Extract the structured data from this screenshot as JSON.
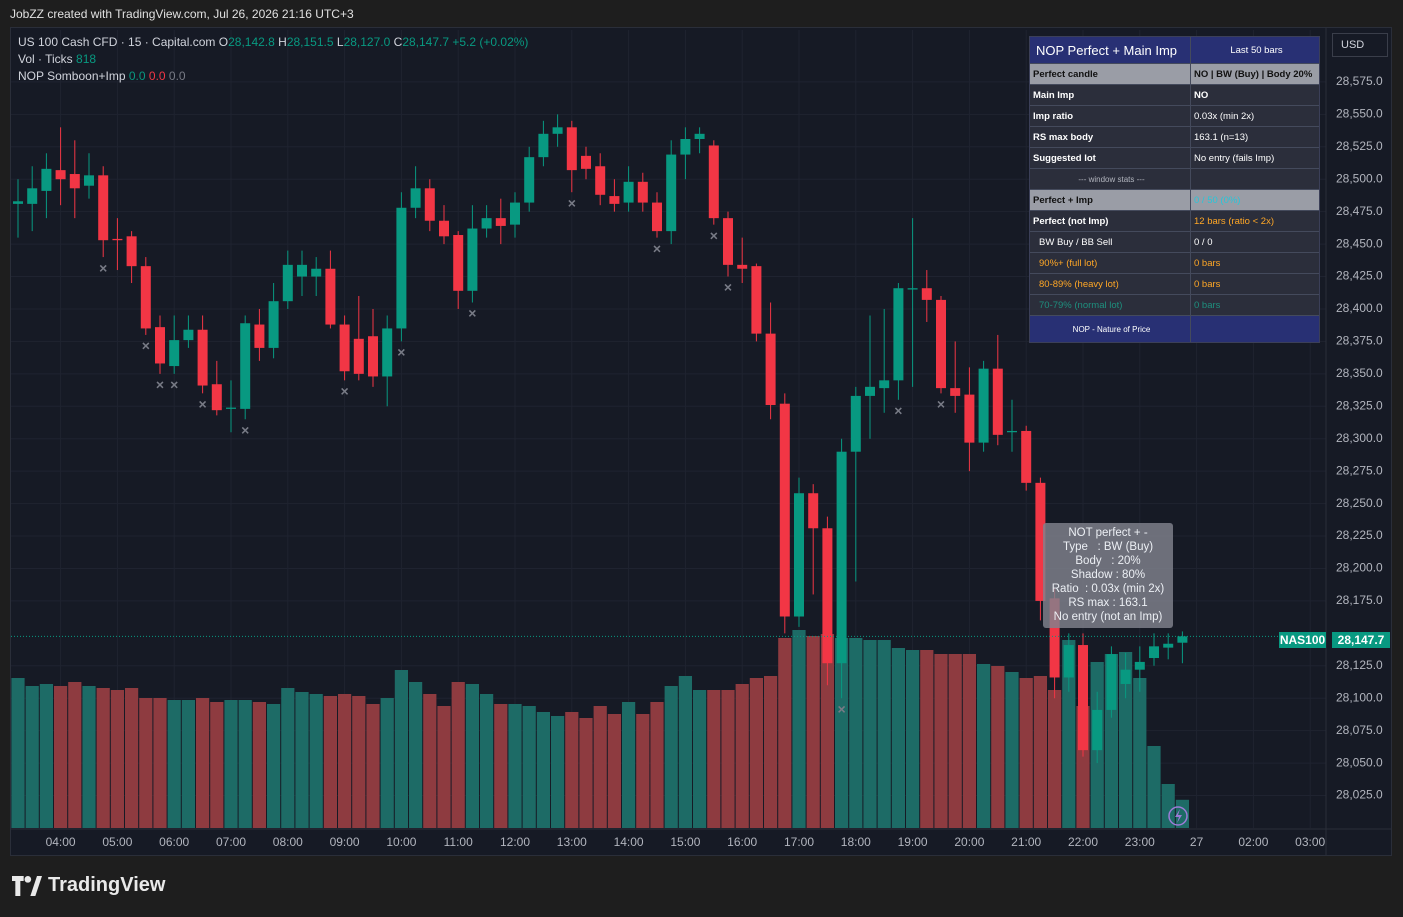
{
  "header": {
    "credit": "JobZZ created with TradingView.com, Jul 26, 2026 21:16 UTC+3"
  },
  "legend": {
    "symbol": "US 100 Cash CFD · 15 · Capital.com",
    "o_label": "O",
    "o": "28,142.8",
    "h_label": "H",
    "h": "28,151.5",
    "l_label": "L",
    "l": "28,127.0",
    "c_label": "C",
    "c": "28,147.7",
    "change": "+5.2 (+0.02%)",
    "vol_name": "Vol · Ticks",
    "vol_value": "818",
    "ind_name": "NOP Somboon+Imp",
    "ind_values": [
      "0.0",
      "0.0",
      "0.0"
    ]
  },
  "currency": "USD",
  "price_tag": {
    "symbol": "NAS100",
    "price": "28,147.7"
  },
  "chart_data": {
    "type": "candlestick",
    "up_color": "#089981",
    "down_color": "#f23645",
    "volume_up_color": "#1d6b66",
    "volume_down_color": "#8e3b40",
    "open": [
      28481,
      28481,
      28491,
      28507,
      28504,
      28495,
      28503,
      28454,
      28456,
      28433,
      28386,
      28356,
      28376,
      28384,
      28342,
      28323,
      28323,
      28388,
      28370,
      28406,
      28425,
      28425,
      28431,
      28388,
      28377,
      28379,
      28348,
      28385,
      28478,
      28493,
      28468,
      28457,
      28414,
      28462,
      28470,
      28465,
      28482,
      28517,
      28535,
      28540,
      28518,
      28510,
      28487,
      28482,
      28498,
      28482,
      28460,
      28519,
      28531,
      28526,
      28470,
      28434,
      28433,
      28381,
      28327,
      28163,
      28258,
      28231,
      28127,
      28290,
      28333,
      28339,
      28345,
      28415,
      28416,
      28407,
      28339,
      28334,
      28297,
      28354,
      28305,
      28306,
      28266,
      28177,
      28116,
      28141,
      28060,
      28091,
      28111,
      28122,
      28131,
      28139,
      28142.8
    ],
    "high": [
      28500,
      28510,
      28520,
      28540,
      28530,
      28520,
      28510,
      28470,
      28460,
      28440,
      28395,
      28395,
      28395,
      28395,
      28360,
      28345,
      28395,
      28400,
      28420,
      28445,
      28445,
      28440,
      28445,
      28395,
      28410,
      28400,
      28395,
      28490,
      28510,
      28500,
      28480,
      28460,
      28480,
      28480,
      28485,
      28490,
      28525,
      28545,
      28550,
      28545,
      28525,
      28520,
      28500,
      28510,
      28505,
      28490,
      28530,
      28540,
      28540,
      28530,
      28475,
      28455,
      28435,
      28405,
      28335,
      28270,
      28265,
      28240,
      28300,
      28340,
      28395,
      28400,
      28420,
      28470,
      28430,
      28410,
      28375,
      28355,
      28360,
      28380,
      28330,
      28310,
      28270,
      28185,
      28150,
      28150,
      28105,
      28140,
      28135,
      28140,
      28150,
      28150,
      28151.5
    ],
    "low": [
      28455,
      28460,
      28470,
      28480,
      28470,
      28485,
      28440,
      28430,
      28420,
      28380,
      28350,
      28350,
      28370,
      28335,
      28318,
      28305,
      28315,
      28360,
      28362,
      28400,
      28410,
      28410,
      28385,
      28345,
      28345,
      28340,
      28325,
      28375,
      28470,
      28460,
      28450,
      28400,
      28405,
      28455,
      28450,
      28455,
      28475,
      28510,
      28525,
      28490,
      28500,
      28480,
      28475,
      28475,
      28475,
      28455,
      28450,
      28500,
      28520,
      28465,
      28425,
      28420,
      28375,
      28315,
      28150,
      28155,
      28180,
      28110,
      28100,
      28190,
      28300,
      28320,
      28330,
      28340,
      28390,
      28335,
      28320,
      28275,
      28290,
      28295,
      28290,
      28260,
      28160,
      28100,
      28105,
      28055,
      28050,
      28085,
      28100,
      28105,
      28125,
      28130,
      28127
    ],
    "close": [
      28483,
      28493,
      28508,
      28500,
      28493,
      28503,
      28453,
      28453,
      28433,
      28385,
      28358,
      28376,
      28384,
      28341,
      28322,
      28324,
      28389,
      28370,
      28406,
      28434,
      28434,
      28431,
      28388,
      28352,
      28350,
      28348,
      28385,
      28478,
      28493,
      28468,
      28456,
      28414,
      28462,
      28470,
      28464,
      28482,
      28517,
      28535,
      28540,
      28507,
      28508,
      28488,
      28481,
      28498,
      28482,
      28460,
      28519,
      28531,
      28535,
      28470,
      28434,
      28431,
      28381,
      28326,
      28163,
      28258,
      28231,
      28127,
      28290,
      28333,
      28340,
      28345,
      28416,
      28416,
      28407,
      28339,
      28333,
      28297,
      28354,
      28303,
      28306,
      28266,
      28175,
      28116,
      28141,
      28060,
      28091,
      28134,
      28122,
      28128,
      28140,
      28142,
      28147.7
    ],
    "volume": [
      4350,
      4118,
      4176,
      4118,
      4234,
      4118,
      4060,
      4002,
      4060,
      3770,
      3770,
      3712,
      3712,
      3770,
      3654,
      3712,
      3712,
      3654,
      3596,
      4060,
      3944,
      3886,
      3828,
      3886,
      3828,
      3596,
      3770,
      4582,
      4234,
      3886,
      3538,
      4234,
      4176,
      3886,
      3596,
      3596,
      3538,
      3364,
      3248,
      3364,
      3190,
      3538,
      3306,
      3654,
      3306,
      3654,
      4118,
      4408,
      4002,
      4002,
      4002,
      4176,
      4350,
      4408,
      5510,
      5742,
      5568,
      5626,
      5510,
      5510,
      5452,
      5452,
      5220,
      5162,
      5162,
      5046,
      5046,
      5046,
      4756,
      4698,
      4524,
      4350,
      4408,
      4002,
      5452,
      3538,
      4814,
      5046,
      5104,
      4350,
      2378,
      1276,
      818
    ],
    "signal_markers": [
      6,
      9,
      10,
      11,
      13,
      16,
      23,
      27,
      32,
      39,
      45,
      49,
      50,
      58,
      62,
      65
    ],
    "ylim": [
      28000,
      28615
    ],
    "yticks": [
      {
        "value": 28575,
        "label": "28,575.0"
      },
      {
        "value": 28550,
        "label": "28,550.0"
      },
      {
        "value": 28525,
        "label": "28,525.0"
      },
      {
        "value": 28500,
        "label": "28,500.0"
      },
      {
        "value": 28475,
        "label": "28,475.0"
      },
      {
        "value": 28450,
        "label": "28,450.0"
      },
      {
        "value": 28425,
        "label": "28,425.0"
      },
      {
        "value": 28400,
        "label": "28,400.0"
      },
      {
        "value": 28375,
        "label": "28,375.0"
      },
      {
        "value": 28350,
        "label": "28,350.0"
      },
      {
        "value": 28325,
        "label": "28,325.0"
      },
      {
        "value": 28300,
        "label": "28,300.0"
      },
      {
        "value": 28275,
        "label": "28,275.0"
      },
      {
        "value": 28250,
        "label": "28,250.0"
      },
      {
        "value": 28225,
        "label": "28,225.0"
      },
      {
        "value": 28200,
        "label": "28,200.0"
      },
      {
        "value": 28175,
        "label": "28,175.0"
      },
      {
        "value": 28125,
        "label": "28,125.0"
      },
      {
        "value": 28100,
        "label": "28,100.0"
      },
      {
        "value": 28075,
        "label": "28,075.0"
      },
      {
        "value": 28050,
        "label": "28,050.0"
      },
      {
        "value": 28025,
        "label": "28,025.0"
      }
    ],
    "xticks": [
      "04:00",
      "05:00",
      "06:00",
      "07:00",
      "08:00",
      "09:00",
      "10:00",
      "11:00",
      "12:00",
      "13:00",
      "14:00",
      "15:00",
      "16:00",
      "17:00",
      "18:00",
      "19:00",
      "20:00",
      "21:00",
      "22:00",
      "23:00",
      "27",
      "02:00",
      "03:00"
    ],
    "grid": true
  },
  "panel": {
    "title": "NOP Perfect + Main Imp",
    "subtitle": "Last 50 bars",
    "rows": [
      [
        "Perfect candle",
        "NO | BW (Buy) | Body 20%"
      ],
      [
        "Main Imp",
        "NO"
      ],
      [
        "Imp ratio",
        "0.03x  (min 2x)"
      ],
      [
        "RS max body",
        "163.1  (n=13)"
      ],
      [
        "Suggested lot",
        "No entry (fails Imp)"
      ],
      [
        "--- window stats ---"
      ],
      [
        "Perfect + Imp",
        "0 / 50  (0%)"
      ],
      [
        "Perfect (not Imp)",
        "12 bars (ratio < 2x)"
      ],
      [
        "BW Buy / BB Sell",
        "0 / 0"
      ],
      [
        "90%+ (full lot)",
        "0 bars"
      ],
      [
        "80-89% (heavy lot)",
        "0 bars"
      ],
      [
        "70-79% (normal lot)",
        "0 bars"
      ]
    ],
    "footer": "NOP - Nature of Price"
  },
  "tooltip": [
    "NOT perfect + -",
    "Type   : BW (Buy)",
    "Body   : 20%",
    "Shadow : 80%",
    "Ratio  : 0.03x (min 2x)",
    "RS max : 163.1",
    "No entry (not an Imp)"
  ],
  "brand": "TradingView"
}
